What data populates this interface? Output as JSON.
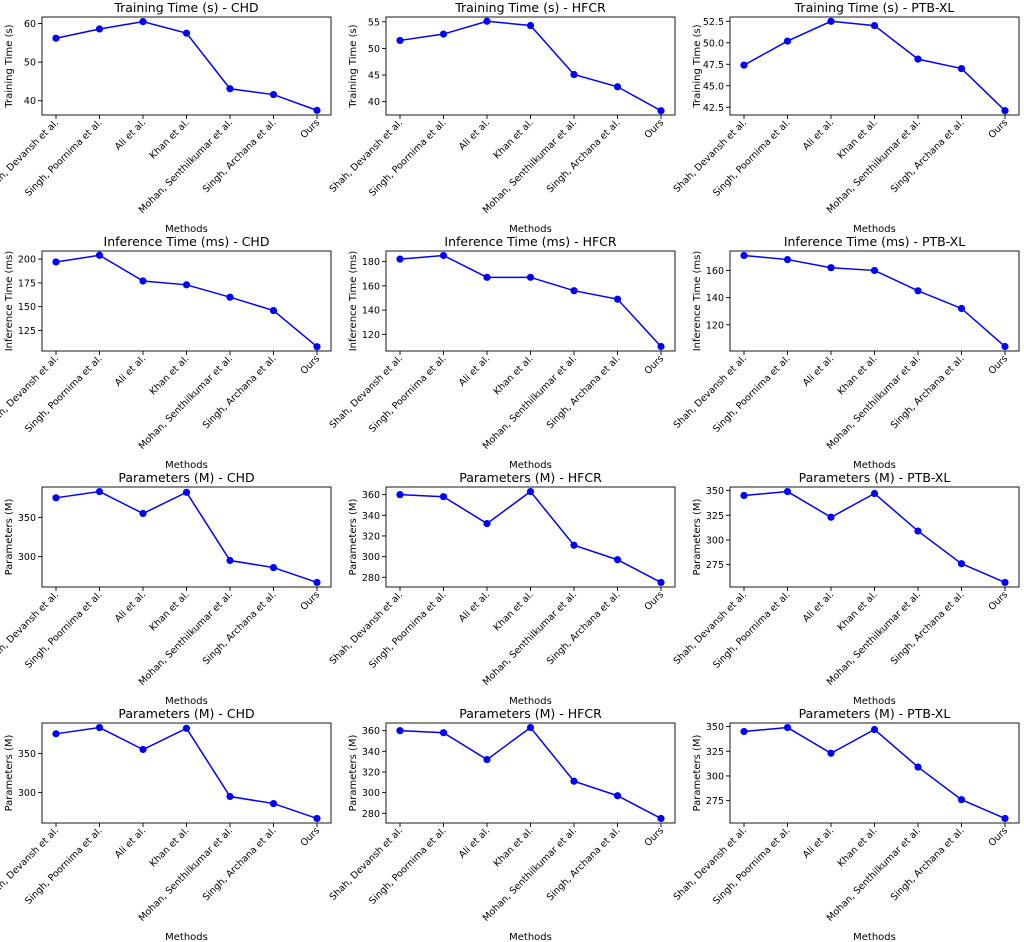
{
  "figure": {
    "series_color": "#0000ff"
  },
  "chart_data": [
    {
      "type": "line",
      "title": "Training Time (s) - CHD",
      "xlabel": "Methods",
      "ylabel": "Training Time (s)",
      "categories": [
        "Shah, Devansh et al.",
        "Singh, Poornima et al.",
        "Ali et al.",
        "Khan et al.",
        "Mohan, Senthilkumar et al.",
        "Singh, Archana et al.",
        "Ours"
      ],
      "values": [
        56.2,
        58.6,
        60.5,
        57.5,
        43.1,
        41.6,
        37.5
      ],
      "ylim": [
        36.3,
        61.7
      ],
      "yticks": [
        40,
        50,
        60
      ],
      "grid": false
    },
    {
      "type": "line",
      "title": "Training Time (s) - HFCR",
      "xlabel": "Methods",
      "ylabel": "Training Time (s)",
      "categories": [
        "Shah, Devansh et al.",
        "Singh, Poornima et al.",
        "Ali et al.",
        "Khan et al.",
        "Mohan, Senthilkumar et al.",
        "Singh, Archana et al.",
        "Ours"
      ],
      "values": [
        51.5,
        52.7,
        55.1,
        54.3,
        45.1,
        42.8,
        38.3
      ],
      "ylim": [
        37.5,
        55.9
      ],
      "yticks": [
        40,
        45,
        50,
        55
      ],
      "grid": false
    },
    {
      "type": "line",
      "title": "Training Time (s) - PTB-XL",
      "xlabel": "Methods",
      "ylabel": "Training Time (s)",
      "categories": [
        "Shah, Devansh et al.",
        "Singh, Poornima et al.",
        "Ali et al.",
        "Khan et al.",
        "Mohan, Senthilkumar et al.",
        "Singh, Archana et al.",
        "Ours"
      ],
      "values": [
        47.4,
        50.2,
        52.5,
        52.0,
        48.1,
        47.0,
        42.1
      ],
      "ylim": [
        41.6,
        53.0
      ],
      "yticks": [
        42.5,
        45.0,
        47.5,
        50.0,
        52.5
      ],
      "grid": false
    },
    {
      "type": "line",
      "title": "Inference Time (ms) - CHD",
      "xlabel": "Methods",
      "ylabel": "Inference Time (ms)",
      "categories": [
        "Shah, Devansh et al.",
        "Singh, Poornima et al.",
        "Ali et al.",
        "Khan et al.",
        "Mohan, Senthilkumar et al.",
        "Singh, Archana et al.",
        "Ours"
      ],
      "values": [
        197,
        204,
        177,
        173,
        160,
        146,
        108
      ],
      "ylim": [
        103.5,
        208.5
      ],
      "yticks": [
        125,
        150,
        175,
        200
      ],
      "grid": false
    },
    {
      "type": "line",
      "title": "Inference Time (ms) - HFCR",
      "xlabel": "Methods",
      "ylabel": "Inference Time (ms)",
      "categories": [
        "Shah, Devansh et al.",
        "Singh, Poornima et al.",
        "Ali et al.",
        "Khan et al.",
        "Mohan, Senthilkumar et al.",
        "Singh, Archana et al.",
        "Ours"
      ],
      "values": [
        182,
        185,
        167,
        167,
        156,
        149,
        110
      ],
      "ylim": [
        106.3,
        188.7
      ],
      "yticks": [
        120,
        140,
        160,
        180
      ],
      "grid": false
    },
    {
      "type": "line",
      "title": "Inference Time (ms) - PTB-XL",
      "xlabel": "Methods",
      "ylabel": "Inference Time (ms)",
      "categories": [
        "Shah, Devansh et al.",
        "Singh, Poornima et al.",
        "Ali et al.",
        "Khan et al.",
        "Mohan, Senthilkumar et al.",
        "Singh, Archana et al.",
        "Ours"
      ],
      "values": [
        171,
        168,
        162,
        160,
        145,
        132,
        104
      ],
      "ylim": [
        100.7,
        174.3
      ],
      "yticks": [
        120,
        140,
        160
      ],
      "grid": false
    },
    {
      "type": "line",
      "title": "Parameters (M) - CHD",
      "xlabel": "Methods",
      "ylabel": "Parameters (M)",
      "categories": [
        "Shah, Devansh et al.",
        "Singh, Poornima et al.",
        "Ali et al.",
        "Khan et al.",
        "Mohan, Senthilkumar et al.",
        "Singh, Archana et al.",
        "Ours"
      ],
      "values": [
        375,
        383,
        355,
        382,
        295,
        286,
        267
      ],
      "ylim": [
        261.2,
        388.8
      ],
      "yticks": [
        300,
        350
      ],
      "grid": false
    },
    {
      "type": "line",
      "title": "Parameters (M) - HFCR",
      "xlabel": "Methods",
      "ylabel": "Parameters (M)",
      "categories": [
        "Shah, Devansh et al.",
        "Singh, Poornima et al.",
        "Ali et al.",
        "Khan et al.",
        "Mohan, Senthilkumar et al.",
        "Singh, Archana et al.",
        "Ours"
      ],
      "values": [
        360,
        358,
        332,
        363,
        311,
        297,
        275
      ],
      "ylim": [
        270.6,
        367.4
      ],
      "yticks": [
        280,
        300,
        320,
        340,
        360
      ],
      "grid": false
    },
    {
      "type": "line",
      "title": "Parameters (M) - PTB-XL",
      "xlabel": "Methods",
      "ylabel": "Parameters (M)",
      "categories": [
        "Shah, Devansh et al.",
        "Singh, Poornima et al.",
        "Ali et al.",
        "Khan et al.",
        "Mohan, Senthilkumar et al.",
        "Singh, Archana et al.",
        "Ours"
      ],
      "values": [
        345,
        349,
        323,
        347,
        309,
        276,
        257
      ],
      "ylim": [
        252.4,
        353.6
      ],
      "yticks": [
        275,
        300,
        325,
        350
      ],
      "grid": false
    },
    {
      "type": "line",
      "title": "Parameters (M) - CHD",
      "xlabel": "Methods",
      "ylabel": "Parameters (M)",
      "categories": [
        "Shah, Devansh et al.",
        "Singh, Poornima et al.",
        "Ali et al.",
        "Khan et al.",
        "Mohan, Senthilkumar et al.",
        "Singh, Archana et al.",
        "Ours"
      ],
      "values": [
        375,
        383,
        355,
        382,
        295,
        286,
        267
      ],
      "ylim": [
        261.2,
        388.8
      ],
      "yticks": [
        300,
        350
      ],
      "grid": false
    },
    {
      "type": "line",
      "title": "Parameters (M) - HFCR",
      "xlabel": "Methods",
      "ylabel": "Parameters (M)",
      "categories": [
        "Shah, Devansh et al.",
        "Singh, Poornima et al.",
        "Ali et al.",
        "Khan et al.",
        "Mohan, Senthilkumar et al.",
        "Singh, Archana et al.",
        "Ours"
      ],
      "values": [
        360,
        358,
        332,
        363,
        311,
        297,
        275
      ],
      "ylim": [
        270.6,
        367.4
      ],
      "yticks": [
        280,
        300,
        320,
        340,
        360
      ],
      "grid": false
    },
    {
      "type": "line",
      "title": "Parameters (M) - PTB-XL",
      "xlabel": "Methods",
      "ylabel": "Parameters (M)",
      "categories": [
        "Shah, Devansh et al.",
        "Singh, Poornima et al.",
        "Ali et al.",
        "Khan et al.",
        "Mohan, Senthilkumar et al.",
        "Singh, Archana et al.",
        "Ours"
      ],
      "values": [
        345,
        349,
        323,
        347,
        309,
        276,
        257
      ],
      "ylim": [
        252.4,
        353.6
      ],
      "yticks": [
        275,
        300,
        325,
        350
      ],
      "grid": false
    }
  ]
}
